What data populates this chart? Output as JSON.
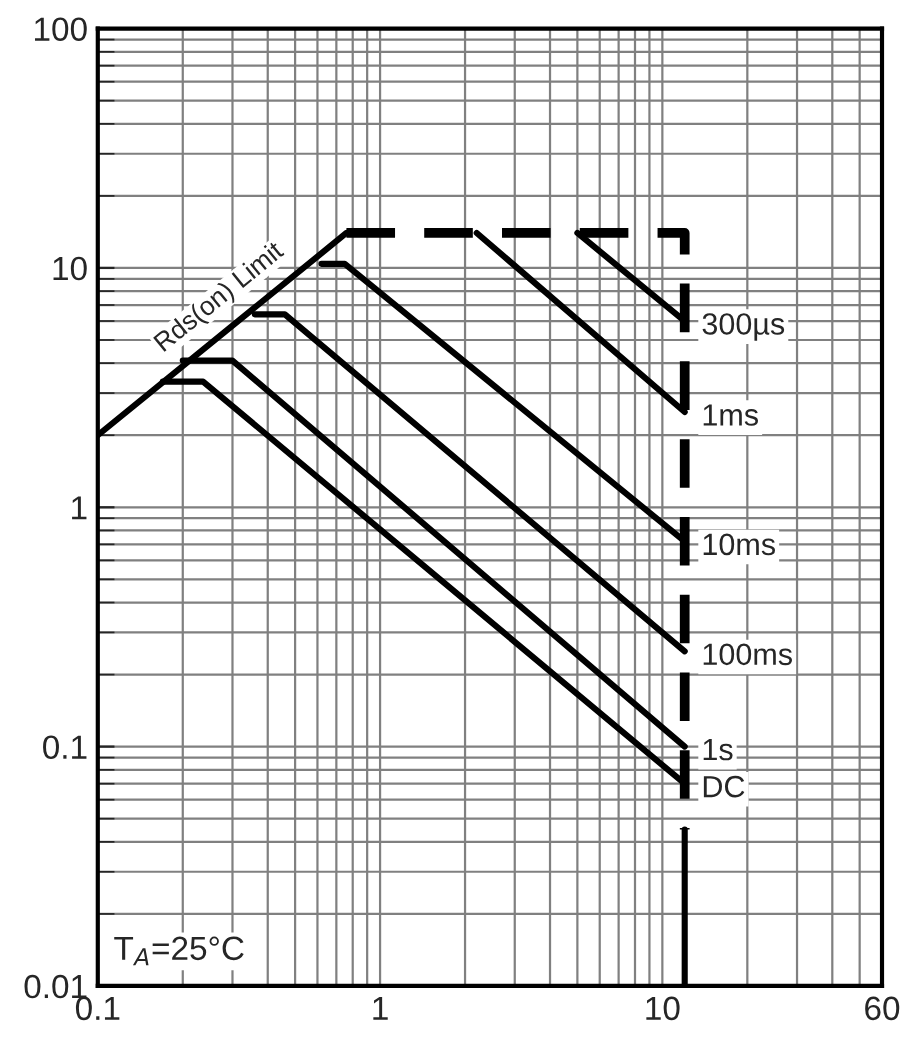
{
  "chart_data": {
    "type": "line",
    "log": "xy",
    "grid": true,
    "line_style": "solid",
    "marker": "none",
    "xlim": [
      0.1,
      60
    ],
    "xticks": [
      0.1,
      1,
      10,
      60
    ],
    "ylim": [
      0.01,
      100
    ],
    "yticks": [
      0.01,
      0.1,
      1,
      10,
      100
    ],
    "series": [
      {
        "color": "#000000",
        "x": [
          0.1,
          0.76
        ],
        "values": [
          2,
          14
        ]
      },
      {
        "color": "#000000",
        "line_style": "dashed",
        "x": [
          0.76,
          12,
          12
        ],
        "values": [
          14,
          14,
          0.045
        ]
      },
      {
        "color": "#000000",
        "x": [
          12,
          12
        ],
        "values": [
          0.045,
          0.01
        ]
      },
      {
        "name": "300µs",
        "color": "#000000",
        "x": [
          5.0,
          12
        ],
        "values": [
          14,
          6.0
        ]
      },
      {
        "name": "1ms",
        "color": "#000000",
        "x": [
          2.2,
          12
        ],
        "values": [
          14,
          2.5
        ]
      },
      {
        "name": "10ms",
        "color": "#000000",
        "x": [
          0.62,
          0.75,
          12
        ],
        "values": [
          10.4,
          10.4,
          0.72
        ]
      },
      {
        "name": "100ms",
        "color": "#000000",
        "x": [
          0.36,
          0.46,
          12
        ],
        "values": [
          6.4,
          6.4,
          0.25
        ]
      },
      {
        "name": "1s",
        "color": "#000000",
        "x": [
          0.2,
          0.3,
          12
        ],
        "values": [
          4.1,
          4.1,
          0.1
        ]
      },
      {
        "name": "DC",
        "color": "#000000",
        "x": [
          0.17,
          0.236,
          12
        ],
        "values": [
          3.35,
          3.35,
          0.07
        ]
      }
    ],
    "annotations": [
      {
        "text": "Rds(on) Limit",
        "x": 0.3,
        "y": 6.4
      },
      "T$_{A}$=25°C"
    ]
  }
}
